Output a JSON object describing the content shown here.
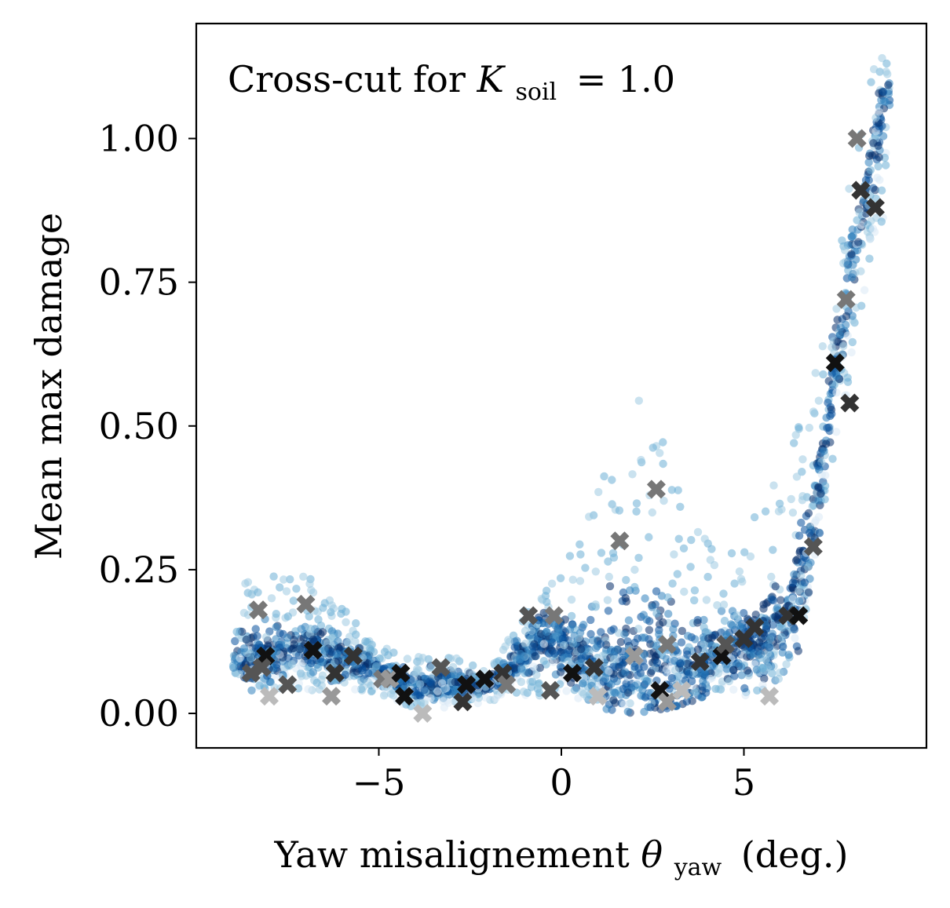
{
  "chart_data": {
    "type": "scatter",
    "title": "",
    "annotation": {
      "text": "Cross-cut for ",
      "symbol": "K",
      "subscript": "soil",
      "value": "= 1.0",
      "placement": "top-left"
    },
    "xlabel": {
      "text": "Yaw misalignement ",
      "symbol": "θ",
      "subscript": "yaw",
      "unit": "(deg.)"
    },
    "ylabel": "Mean max damage",
    "xlim": [
      -10,
      10
    ],
    "ylim": [
      -0.06,
      1.2
    ],
    "xticks": [
      -5,
      0,
      5
    ],
    "xtick_labels": [
      "−5",
      "0",
      "5"
    ],
    "yticks": [
      0.0,
      0.25,
      0.5,
      0.75,
      1.0
    ],
    "ytick_labels": [
      "0.00",
      "0.25",
      "0.50",
      "0.75",
      "1.00"
    ],
    "grid": false,
    "legend": "none",
    "colors": {
      "scatter_colormap": [
        "#dbe9f6",
        "#9ecae1",
        "#6baed6",
        "#3182bd",
        "#08519c",
        "#08306b"
      ],
      "marker_colors": [
        "#111111",
        "#333333",
        "#555555",
        "#777777",
        "#999999",
        "#bbbbbb"
      ]
    },
    "series": [
      {
        "marker": "circle",
        "description_points": "dense cloud along ridge",
        "ridge": [
          [
            -9.0,
            0.11
          ],
          [
            -8.5,
            0.1
          ],
          [
            -8.0,
            0.1
          ],
          [
            -7.5,
            0.11
          ],
          [
            -7.0,
            0.12
          ],
          [
            -6.5,
            0.11
          ],
          [
            -6.0,
            0.1
          ],
          [
            -5.5,
            0.09
          ],
          [
            -5.0,
            0.07
          ],
          [
            -4.5,
            0.06
          ],
          [
            -4.0,
            0.05
          ],
          [
            -3.5,
            0.05
          ],
          [
            -3.0,
            0.05
          ],
          [
            -2.5,
            0.05
          ],
          [
            -2.0,
            0.05
          ],
          [
            -1.5,
            0.07
          ],
          [
            -1.0,
            0.11
          ],
          [
            -0.5,
            0.13
          ],
          [
            0.0,
            0.12
          ],
          [
            0.5,
            0.1
          ],
          [
            1.0,
            0.09
          ],
          [
            1.5,
            0.09
          ],
          [
            2.0,
            0.1
          ],
          [
            2.5,
            0.1
          ],
          [
            3.0,
            0.09
          ],
          [
            3.5,
            0.08
          ],
          [
            4.0,
            0.09
          ],
          [
            4.5,
            0.11
          ],
          [
            5.0,
            0.12
          ],
          [
            5.5,
            0.13
          ],
          [
            6.0,
            0.15
          ],
          [
            6.5,
            0.2
          ],
          [
            7.0,
            0.38
          ],
          [
            7.5,
            0.6
          ],
          [
            8.0,
            0.8
          ],
          [
            8.5,
            0.95
          ],
          [
            8.9,
            1.08
          ]
        ],
        "upper_envelope": [
          [
            -9.0,
            0.22
          ],
          [
            -8.0,
            0.24
          ],
          [
            -7.0,
            0.25
          ],
          [
            -6.0,
            0.2
          ],
          [
            -5.0,
            0.12
          ],
          [
            -4.0,
            0.1
          ],
          [
            -3.0,
            0.1
          ],
          [
            -2.0,
            0.08
          ],
          [
            -1.0,
            0.18
          ],
          [
            0.0,
            0.26
          ],
          [
            0.5,
            0.32
          ],
          [
            1.0,
            0.4
          ],
          [
            1.5,
            0.48
          ],
          [
            2.0,
            0.56
          ],
          [
            2.5,
            0.54
          ],
          [
            3.0,
            0.44
          ],
          [
            3.5,
            0.36
          ],
          [
            4.0,
            0.3
          ],
          [
            4.5,
            0.28
          ],
          [
            5.0,
            0.32
          ],
          [
            5.5,
            0.36
          ],
          [
            6.0,
            0.42
          ],
          [
            6.5,
            0.5
          ],
          [
            7.0,
            0.62
          ],
          [
            7.5,
            0.8
          ],
          [
            8.0,
            0.98
          ],
          [
            8.5,
            1.12
          ],
          [
            9.0,
            1.16
          ]
        ],
        "lower_envelope": [
          [
            -9.0,
            0.06
          ],
          [
            -8.0,
            0.04
          ],
          [
            -7.0,
            0.04
          ],
          [
            -6.0,
            0.04
          ],
          [
            -5.0,
            0.03
          ],
          [
            -4.0,
            0.01
          ],
          [
            -3.0,
            0.01
          ],
          [
            -2.0,
            0.02
          ],
          [
            -1.0,
            0.03
          ],
          [
            0.0,
            0.03
          ],
          [
            1.0,
            0.02
          ],
          [
            2.0,
            0.01
          ],
          [
            3.0,
            0.02
          ],
          [
            4.0,
            0.04
          ],
          [
            5.0,
            0.02
          ],
          [
            6.0,
            0.06
          ],
          [
            6.5,
            0.12
          ],
          [
            7.0,
            0.26
          ],
          [
            7.5,
            0.44
          ],
          [
            8.0,
            0.62
          ],
          [
            8.5,
            0.8
          ],
          [
            9.0,
            0.9
          ]
        ]
      },
      {
        "marker": "x",
        "points": [
          [
            -8.3,
            0.18,
            3
          ],
          [
            -7.0,
            0.19,
            3
          ],
          [
            -8.1,
            0.1,
            0
          ],
          [
            -6.8,
            0.11,
            0
          ],
          [
            -5.7,
            0.1,
            1
          ],
          [
            -8.5,
            0.07,
            2
          ],
          [
            -8.2,
            0.08,
            2
          ],
          [
            -7.5,
            0.05,
            2
          ],
          [
            -8.0,
            0.03,
            5
          ],
          [
            -6.2,
            0.07,
            1
          ],
          [
            -6.3,
            0.03,
            4
          ],
          [
            -4.9,
            0.06,
            3
          ],
          [
            -4.7,
            0.06,
            4
          ],
          [
            -4.4,
            0.07,
            0
          ],
          [
            -4.3,
            0.03,
            0
          ],
          [
            -3.8,
            0.0,
            5
          ],
          [
            -3.3,
            0.08,
            2
          ],
          [
            -2.6,
            0.05,
            0
          ],
          [
            -2.7,
            0.02,
            1
          ],
          [
            -2.1,
            0.06,
            0
          ],
          [
            -1.6,
            0.07,
            1
          ],
          [
            -1.5,
            0.05,
            3
          ],
          [
            -0.9,
            0.17,
            2
          ],
          [
            -0.2,
            0.17,
            3
          ],
          [
            -0.3,
            0.04,
            2
          ],
          [
            0.3,
            0.07,
            0
          ],
          [
            0.9,
            0.08,
            1
          ],
          [
            1.0,
            0.03,
            5
          ],
          [
            1.6,
            0.3,
            3
          ],
          [
            2.0,
            0.1,
            4
          ],
          [
            2.6,
            0.39,
            3
          ],
          [
            2.7,
            0.04,
            0
          ],
          [
            2.9,
            0.12,
            3
          ],
          [
            2.9,
            0.02,
            4
          ],
          [
            3.3,
            0.04,
            5
          ],
          [
            3.8,
            0.09,
            1
          ],
          [
            4.4,
            0.1,
            0
          ],
          [
            4.5,
            0.12,
            2
          ],
          [
            5.0,
            0.13,
            1
          ],
          [
            5.3,
            0.15,
            1
          ],
          [
            5.7,
            0.03,
            5
          ],
          [
            6.2,
            0.17,
            1
          ],
          [
            6.5,
            0.17,
            0
          ],
          [
            6.9,
            0.29,
            2
          ],
          [
            7.5,
            0.61,
            0
          ],
          [
            7.9,
            0.54,
            1
          ],
          [
            7.8,
            0.72,
            3
          ],
          [
            8.1,
            1.0,
            3
          ],
          [
            8.2,
            0.91,
            1
          ],
          [
            8.6,
            0.88,
            1
          ]
        ]
      }
    ]
  }
}
